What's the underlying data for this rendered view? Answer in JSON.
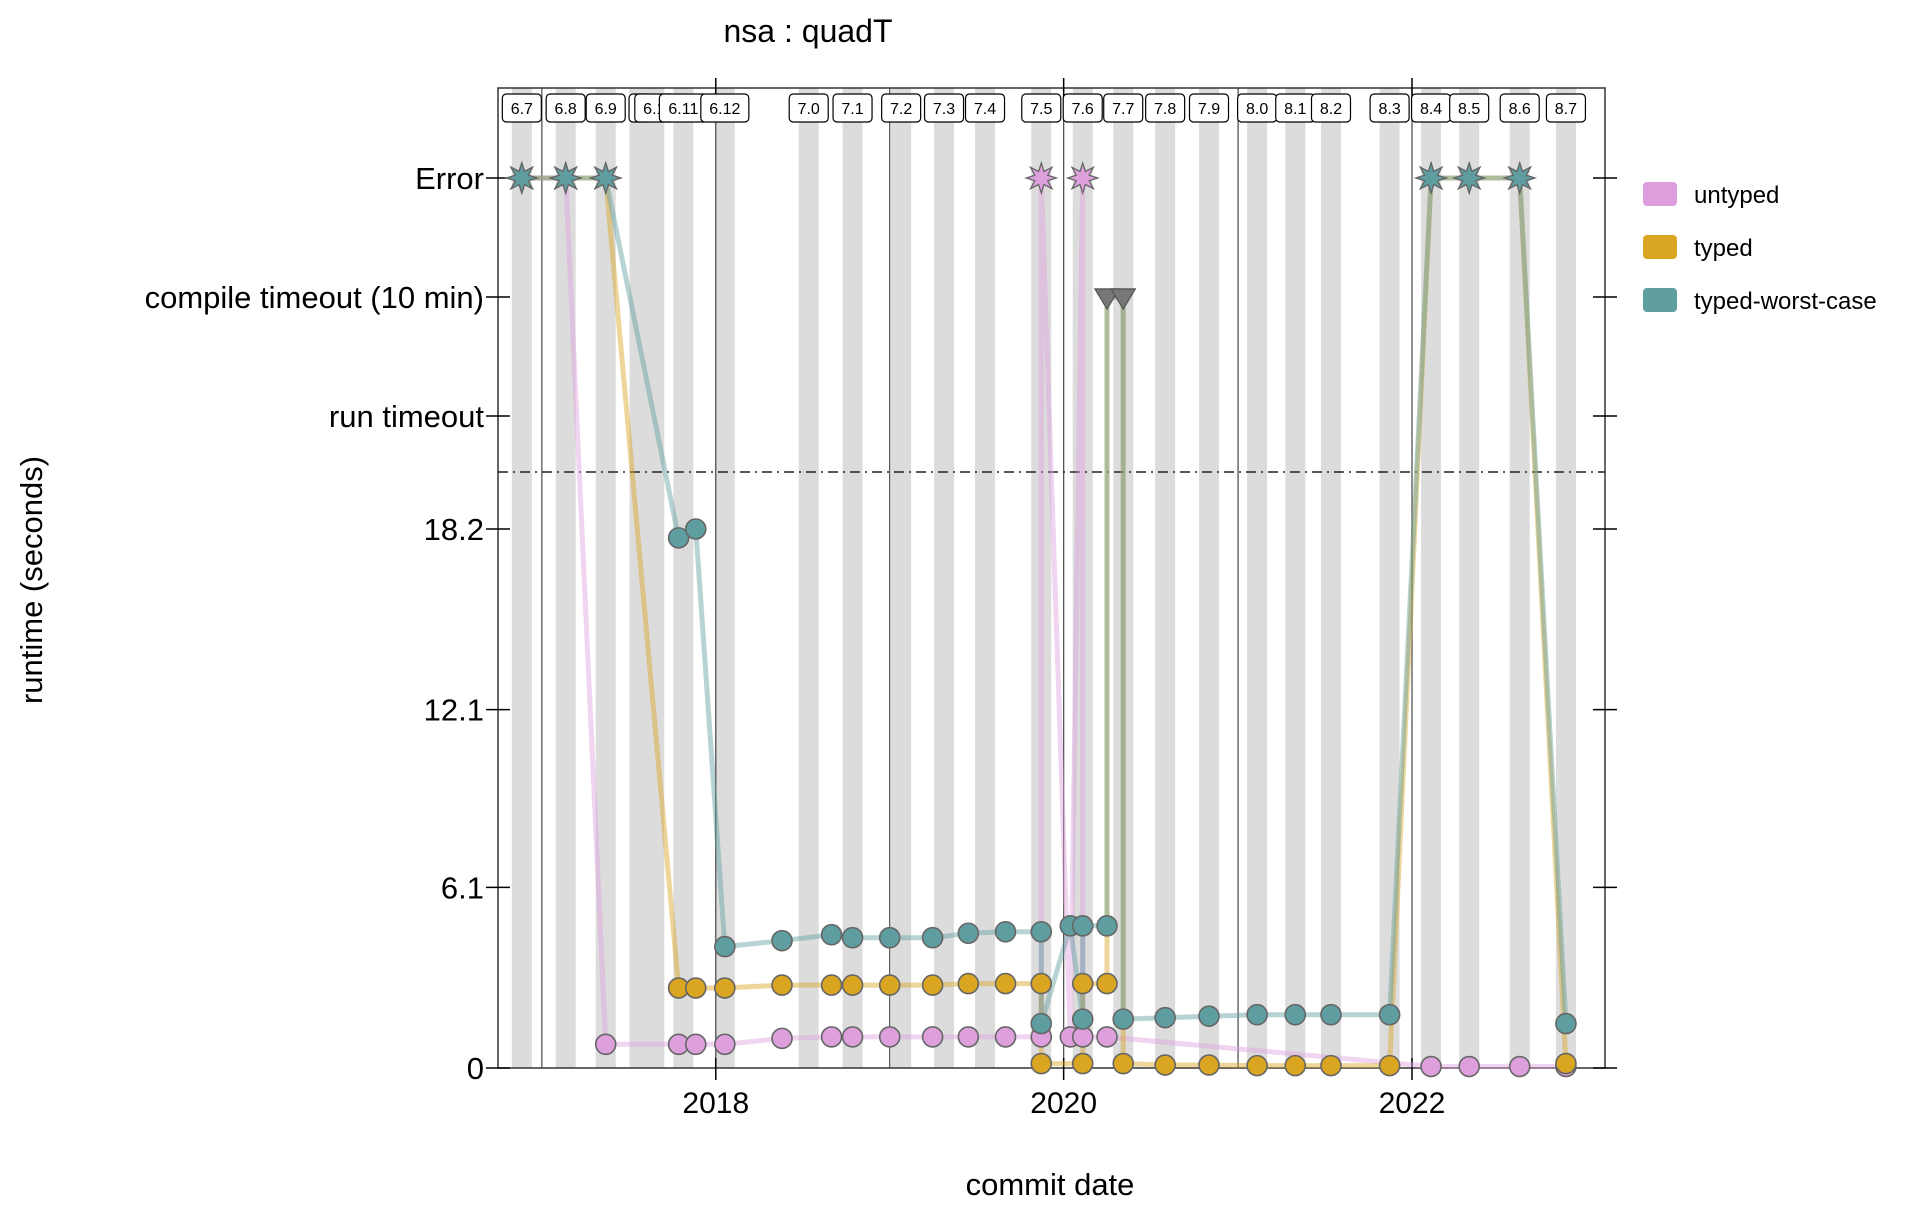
{
  "chart_data": {
    "type": "line",
    "title": "nsa : quadT",
    "xlabel": "commit date",
    "ylabel": "runtime (seconds)",
    "x_range": [
      "2016-10-01",
      "2023-02-10"
    ],
    "x_ticks": [
      {
        "date": "2018-01-01",
        "label": "2018"
      },
      {
        "date": "2020-01-01",
        "label": "2020"
      },
      {
        "date": "2022-01-01",
        "label": "2022"
      }
    ],
    "y_ticks": [
      {
        "value": 0,
        "label": "0"
      },
      {
        "value": 6.1,
        "label": "6.1"
      },
      {
        "value": 12.1,
        "label": "12.1"
      },
      {
        "value": 18.2,
        "label": "18.2"
      },
      {
        "value": "run_timeout",
        "label": "run timeout"
      },
      {
        "value": "compile_timeout",
        "label": "compile timeout (10 min)"
      },
      {
        "value": "error",
        "label": "Error"
      }
    ],
    "cutoff_line": {
      "style": "dash-dot",
      "between": "18.2 and run timeout"
    },
    "grid": false,
    "year_lines": [
      "2017-01-01",
      "2018-01-01",
      "2019-01-01",
      "2020-01-01",
      "2021-01-01",
      "2022-01-01"
    ],
    "versions": [
      {
        "label": "6.7",
        "date": "2016-11-20"
      },
      {
        "label": "6.8",
        "date": "2017-02-20"
      },
      {
        "label": "6.9",
        "date": "2017-05-15"
      },
      {
        "label": "6.10",
        "display": "6",
        "date": "2017-07-25"
      },
      {
        "label": "6.10.1",
        "display": "6.1",
        "date": "2017-08-25"
      },
      {
        "label": "6.11",
        "display": "6.11",
        "date": "2017-10-25"
      },
      {
        "label": "6.12",
        "date": "2018-01-20"
      },
      {
        "label": "7.0",
        "date": "2018-07-15"
      },
      {
        "label": "7.1",
        "date": "2018-10-15"
      },
      {
        "label": "7.2",
        "date": "2019-01-25"
      },
      {
        "label": "7.3",
        "date": "2019-04-25"
      },
      {
        "label": "7.4",
        "date": "2019-07-20"
      },
      {
        "label": "7.5",
        "date": "2019-11-15"
      },
      {
        "label": "7.6",
        "date": "2020-02-10"
      },
      {
        "label": "7.7",
        "date": "2020-05-05"
      },
      {
        "label": "7.8",
        "date": "2020-08-01"
      },
      {
        "label": "7.9",
        "date": "2020-11-01"
      },
      {
        "label": "8.0",
        "date": "2021-02-10"
      },
      {
        "label": "8.1",
        "display": "8.1",
        "date": "2021-05-01"
      },
      {
        "label": "8.2",
        "date": "2021-07-15"
      },
      {
        "label": "8.3",
        "date": "2021-11-15"
      },
      {
        "label": "8.4",
        "display": "8.4",
        "date": "2022-02-10"
      },
      {
        "label": "8.5",
        "date": "2022-05-01"
      },
      {
        "label": "8.6",
        "date": "2022-08-15"
      },
      {
        "label": "8.7",
        "date": "2022-11-20"
      }
    ],
    "series": [
      {
        "name": "untyped",
        "color": "#DDA0DD",
        "points": [
          [
            "2016-11-20",
            "error"
          ],
          [
            "2017-02-20",
            "error"
          ],
          [
            "2017-05-15",
            0.8
          ],
          [
            "2017-10-15",
            0.8
          ],
          [
            "2017-11-20",
            0.8
          ],
          [
            "2018-01-20",
            0.8
          ],
          [
            "2018-05-20",
            1.0
          ],
          [
            "2018-09-01",
            1.05
          ],
          [
            "2018-10-15",
            1.05
          ],
          [
            "2019-01-01",
            1.05
          ],
          [
            "2019-04-01",
            1.05
          ],
          [
            "2019-06-15",
            1.05
          ],
          [
            "2019-09-01",
            1.05
          ],
          [
            "2019-11-15",
            1.05
          ],
          [
            "2019-11-15",
            "error"
          ],
          [
            "2020-01-15",
            1.05
          ],
          [
            "2020-02-10",
            "error"
          ],
          [
            "2020-02-10",
            1.05
          ],
          [
            "2020-04-01",
            1.05
          ],
          [
            "2022-02-10",
            0.05
          ],
          [
            "2022-05-01",
            0.05
          ],
          [
            "2022-08-15",
            0.05
          ],
          [
            "2022-11-20",
            0.05
          ]
        ]
      },
      {
        "name": "typed",
        "color": "#DAA520",
        "points": [
          [
            "2016-11-20",
            "error"
          ],
          [
            "2017-02-20",
            "error"
          ],
          [
            "2017-05-15",
            "error"
          ],
          [
            "2017-10-15",
            2.7
          ],
          [
            "2017-11-20",
            2.7
          ],
          [
            "2018-01-20",
            2.7
          ],
          [
            "2018-05-20",
            2.8
          ],
          [
            "2018-09-01",
            2.8
          ],
          [
            "2018-10-15",
            2.8
          ],
          [
            "2019-01-01",
            2.8
          ],
          [
            "2019-04-01",
            2.8
          ],
          [
            "2019-06-15",
            2.85
          ],
          [
            "2019-09-01",
            2.85
          ],
          [
            "2019-11-15",
            2.85
          ],
          [
            "2019-11-15",
            0.15
          ],
          [
            "2020-02-10",
            0.15
          ],
          [
            "2020-02-10",
            2.85
          ],
          [
            "2020-04-01",
            2.85
          ],
          [
            "2020-04-01",
            "compile_timeout"
          ],
          [
            "2020-05-05",
            "compile_timeout"
          ],
          [
            "2020-05-05",
            0.15
          ],
          [
            "2020-08-01",
            0.1
          ],
          [
            "2020-11-01",
            0.1
          ],
          [
            "2021-02-10",
            0.08
          ],
          [
            "2021-05-01",
            0.08
          ],
          [
            "2021-07-15",
            0.08
          ],
          [
            "2021-11-15",
            0.08
          ],
          [
            "2022-02-10",
            "error"
          ],
          [
            "2022-05-01",
            "error"
          ],
          [
            "2022-08-15",
            "error"
          ],
          [
            "2022-11-20",
            0.15
          ]
        ]
      },
      {
        "name": "typed-worst-case",
        "color": "#5F9EA0",
        "points": [
          [
            "2016-11-20",
            "error"
          ],
          [
            "2017-02-20",
            "error"
          ],
          [
            "2017-05-15",
            "error"
          ],
          [
            "2017-10-15",
            17.9
          ],
          [
            "2017-11-20",
            18.2
          ],
          [
            "2018-01-20",
            4.1
          ],
          [
            "2018-05-20",
            4.3
          ],
          [
            "2018-09-01",
            4.5
          ],
          [
            "2018-10-15",
            4.4
          ],
          [
            "2019-01-01",
            4.4
          ],
          [
            "2019-04-01",
            4.4
          ],
          [
            "2019-06-15",
            4.55
          ],
          [
            "2019-09-01",
            4.6
          ],
          [
            "2019-11-15",
            4.6
          ],
          [
            "2019-11-15",
            1.5
          ],
          [
            "2020-01-15",
            4.8
          ],
          [
            "2020-02-10",
            1.65
          ],
          [
            "2020-02-10",
            4.8
          ],
          [
            "2020-04-01",
            4.8
          ],
          [
            "2020-04-01",
            "compile_timeout"
          ],
          [
            "2020-05-05",
            "compile_timeout"
          ],
          [
            "2020-05-05",
            1.65
          ],
          [
            "2020-08-01",
            1.7
          ],
          [
            "2020-11-01",
            1.75
          ],
          [
            "2021-02-10",
            1.8
          ],
          [
            "2021-05-01",
            1.8
          ],
          [
            "2021-07-15",
            1.8
          ],
          [
            "2021-11-15",
            1.8
          ],
          [
            "2022-02-10",
            "error"
          ],
          [
            "2022-05-01",
            "error"
          ],
          [
            "2022-08-15",
            "error"
          ],
          [
            "2022-11-20",
            1.5
          ]
        ]
      }
    ],
    "legend": {
      "placement": "right",
      "entries": [
        "untyped",
        "typed",
        "typed-worst-case"
      ]
    }
  }
}
